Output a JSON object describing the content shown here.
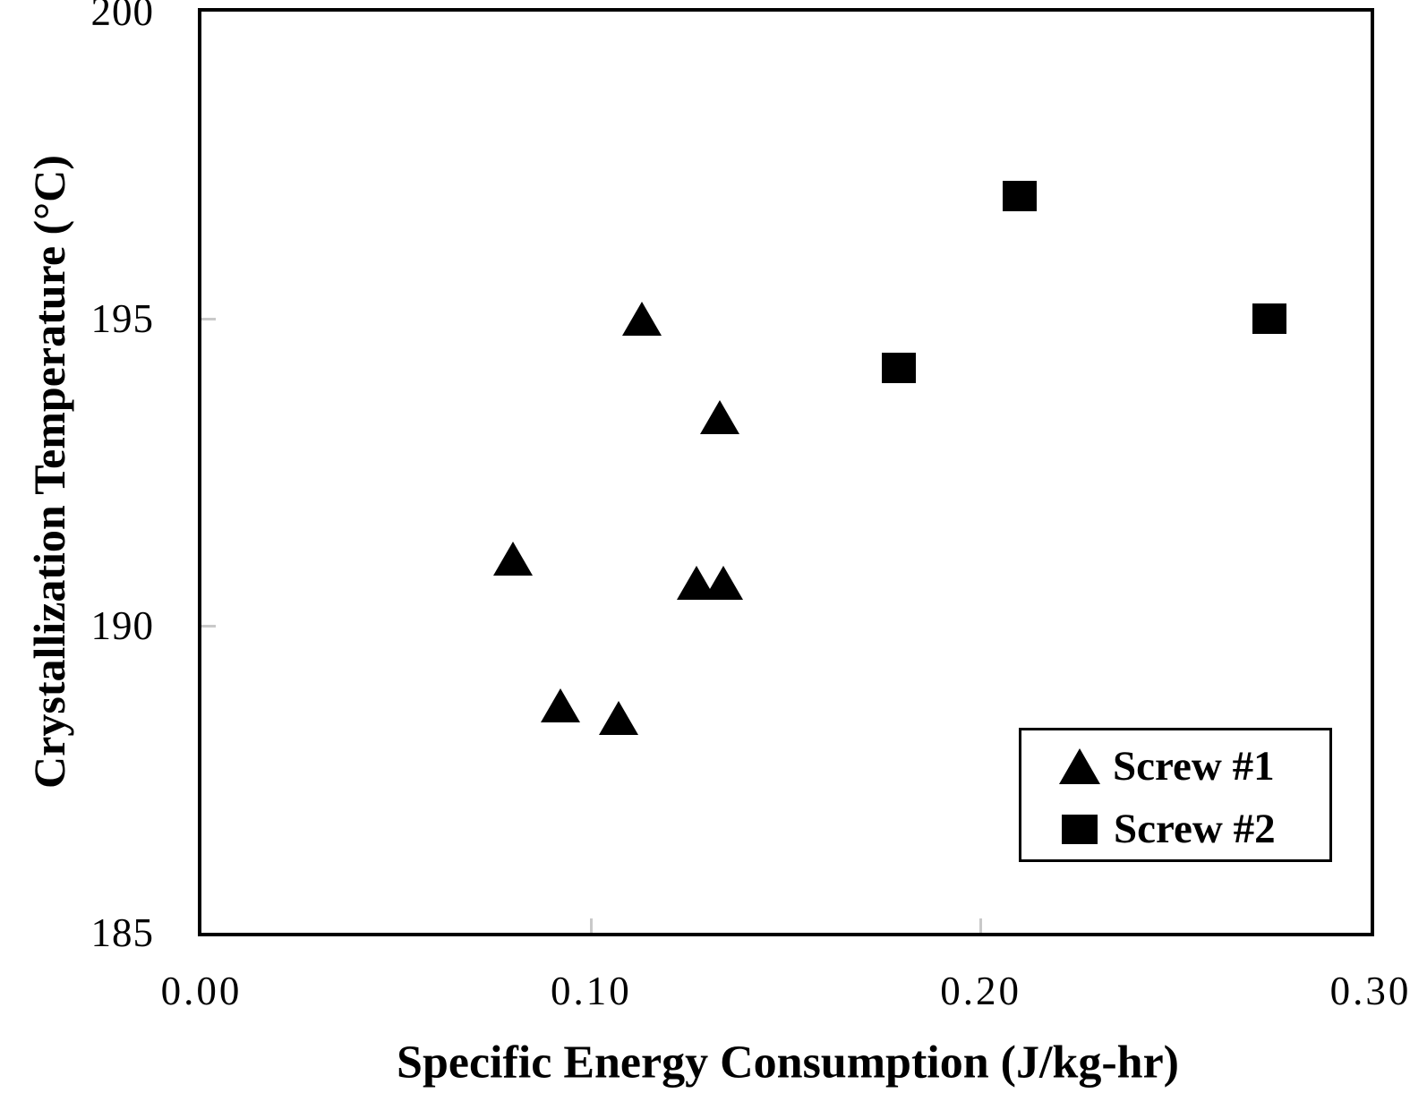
{
  "chart_data": {
    "type": "scatter",
    "title": "",
    "xlabel": "Specific Energy Consumption (J/kg-hr)",
    "ylabel": "Crystallization Temperature (°C)",
    "xlim": [
      0.0,
      0.3
    ],
    "ylim": [
      185,
      200
    ],
    "x_ticks": [
      0.0,
      0.1,
      0.2,
      0.3
    ],
    "x_tick_labels": [
      "0.00",
      "0.10",
      "0.20",
      "0.30"
    ],
    "y_ticks": [
      185,
      190,
      195,
      200
    ],
    "y_tick_labels": [
      "185",
      "190",
      "195",
      "200"
    ],
    "grid": false,
    "legend_position": "lower-right",
    "marker_color": "#000000",
    "tick_mark_color": "#c9c9c9",
    "series": [
      {
        "name": "Screw #1",
        "marker": "triangle",
        "color": "#000000",
        "points": [
          [
            0.08,
            191.1
          ],
          [
            0.092,
            188.7
          ],
          [
            0.107,
            188.5
          ],
          [
            0.113,
            195.0
          ],
          [
            0.127,
            190.7
          ],
          [
            0.133,
            193.4
          ],
          [
            0.134,
            190.7
          ]
        ]
      },
      {
        "name": "Screw #2",
        "marker": "square",
        "color": "#000000",
        "points": [
          [
            0.179,
            194.2
          ],
          [
            0.21,
            197.0
          ],
          [
            0.274,
            195.0
          ]
        ]
      }
    ]
  }
}
